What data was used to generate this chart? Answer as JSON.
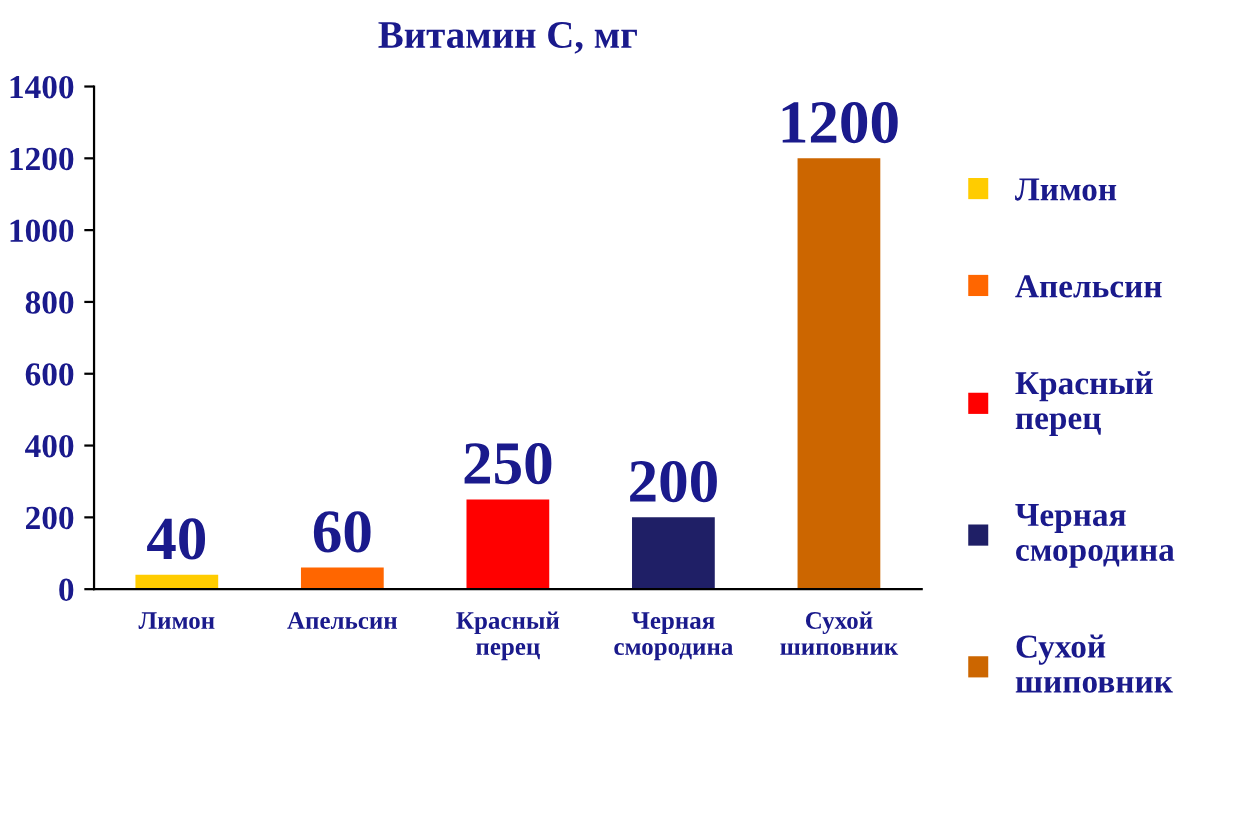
{
  "chart_data": {
    "type": "bar",
    "title": "Витамин С, мг",
    "categories": [
      "Лимон",
      "Апельсин",
      "Красный перец",
      "Черная смородина",
      "Сухой шиповник"
    ],
    "series": [
      {
        "name": "Лимон",
        "color": "#ffcc00",
        "values": [
          40,
          null,
          null,
          null,
          null
        ]
      },
      {
        "name": "Апельсин",
        "color": "#ff6600",
        "values": [
          null,
          60,
          null,
          null,
          null
        ]
      },
      {
        "name": "Красный перец",
        "color": "#ff0000",
        "values": [
          null,
          null,
          250,
          null,
          null
        ]
      },
      {
        "name": "Черная смородина",
        "color": "#1f1f66",
        "values": [
          null,
          null,
          null,
          200,
          null
        ]
      },
      {
        "name": "Сухой шиповник",
        "color": "#cc6600",
        "values": [
          null,
          null,
          null,
          null,
          1200
        ]
      }
    ],
    "ylim": [
      0,
      1400
    ],
    "yticks": [
      0,
      200,
      400,
      600,
      800,
      1000,
      1200,
      1400
    ],
    "data_labels": true,
    "grid": false,
    "legend": "right"
  }
}
